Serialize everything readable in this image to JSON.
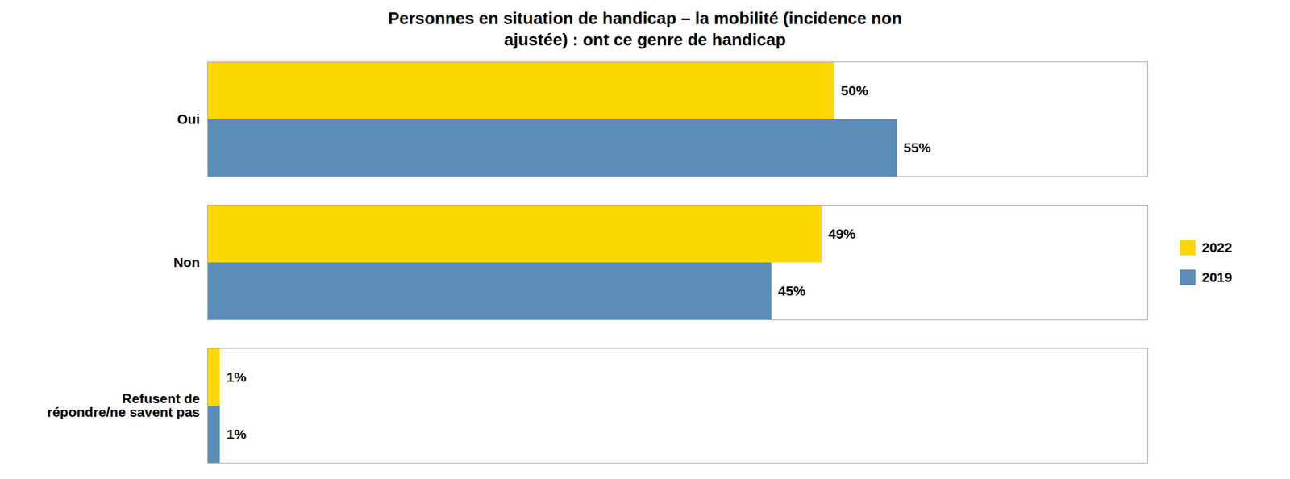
{
  "chart_data": {
    "type": "bar",
    "orientation": "horizontal",
    "title": "Personnes en situation de handicap – la mobilité (incidence non\najustée) : ont ce genre de handicap",
    "categories": [
      "Oui",
      "Non",
      "Refusent de\nrépondre/ne savent pas"
    ],
    "series": [
      {
        "name": "2022",
        "color": "#FFD700",
        "values": [
          50,
          49,
          1
        ],
        "value_labels": [
          "50%",
          "49%",
          "1%"
        ]
      },
      {
        "name": "2019",
        "color": "#5B8DB8",
        "values": [
          55,
          45,
          1
        ],
        "value_labels": [
          "55%",
          "45%",
          "1%"
        ]
      }
    ],
    "xlim": [
      0,
      75
    ],
    "tick_labels": "y",
    "data_labels": true,
    "legend": "right",
    "grid": false
  }
}
